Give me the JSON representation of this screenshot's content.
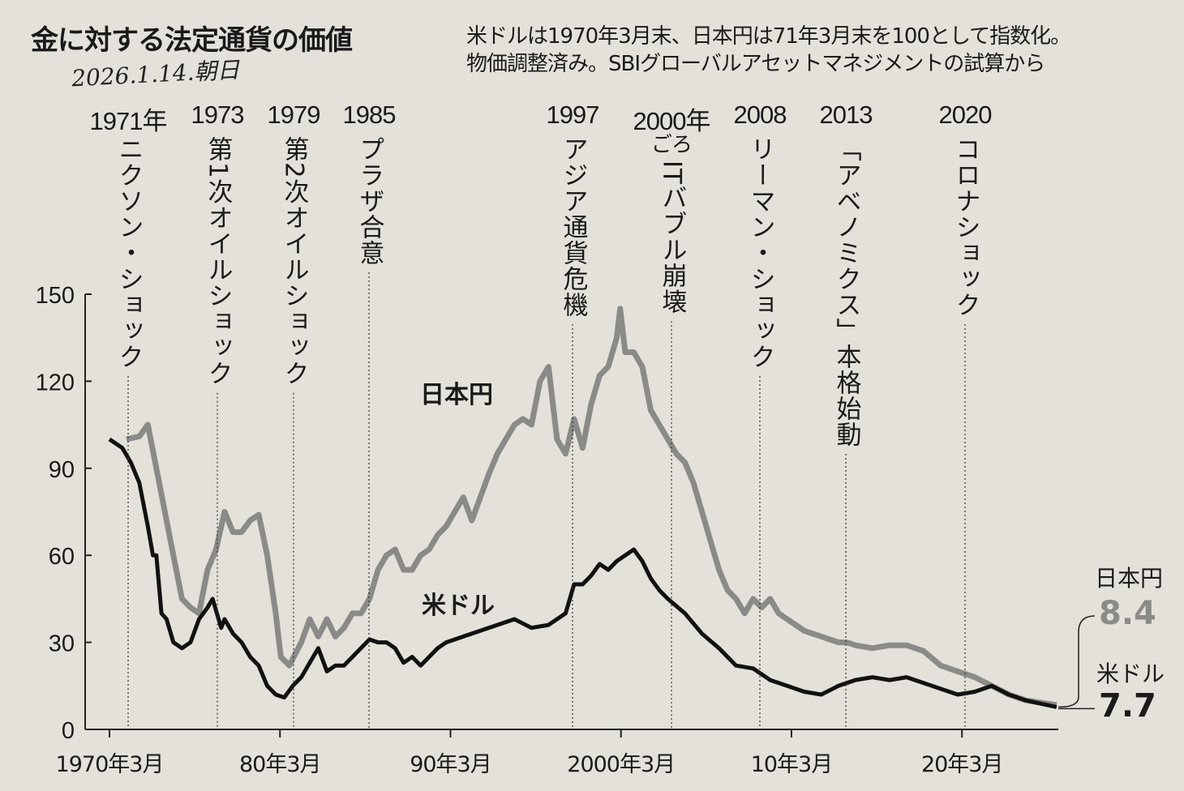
{
  "header": {
    "title": "金に対する法定通貨の価値",
    "handwritten_note": "2026.1.14.朝日",
    "subtitle_line1": "米ドルは1970年3月末、日本円は71年3月末を100として指数化。",
    "subtitle_line2": "物価調整済み。SBIグローバルアセットマネジメントの試算から"
  },
  "events": [
    {
      "year_label": "1971年",
      "text": "ニクソン・ショック",
      "year": 1971.6
    },
    {
      "year_label": "1973",
      "text": "第1次オイルショック",
      "year": 1976.2
    },
    {
      "year_label": "1979",
      "text": "第2次オイルショック",
      "year": 1979.0
    },
    {
      "year_label": "1985",
      "text": "プラザ合意",
      "year": 1985.2
    },
    {
      "year_label": "1997",
      "text": "アジア通貨危機",
      "year": 1997.5
    },
    {
      "year_label": "2000年",
      "sub_label": "ごろ",
      "text": "ITバブル崩壊",
      "year": 2000.2
    },
    {
      "year_label": "2008",
      "text": "リーマン・ショック",
      "year": 2008.3
    },
    {
      "year_label": "2013",
      "text": "「アベノミクス」本格始動",
      "year": 2013.2
    },
    {
      "year_label": "2020",
      "text": "コロナショック",
      "year": 2020.2
    }
  ],
  "chart_data": {
    "type": "line",
    "title": "金に対する法定通貨の価値",
    "xlabel": "",
    "ylabel": "",
    "ylim": [
      0,
      150
    ],
    "xlim": [
      1970.25,
      2025.9
    ],
    "yticks": [
      0,
      30,
      60,
      90,
      120,
      150
    ],
    "xticks": [
      {
        "label": "1970年3月",
        "value": 1970.25
      },
      {
        "label": "80年3月",
        "value": 1980.25
      },
      {
        "label": "90年3月",
        "value": 1990.25
      },
      {
        "label": "2000年3月",
        "value": 2000.25
      },
      {
        "label": "10年3月",
        "value": 2010.25
      },
      {
        "label": "20年3月",
        "value": 2020.25
      }
    ],
    "grid": false,
    "series": [
      {
        "name": "日本円",
        "color": "#8a8a88",
        "end_value": "8.4",
        "x": [
          1971.25,
          1972,
          1972.5,
          1973,
          1973.5,
          1974,
          1974.5,
          1975,
          1975.5,
          1976,
          1976.5,
          1977,
          1977.5,
          1978,
          1978.5,
          1979,
          1979.5,
          1980,
          1980.3,
          1980.8,
          1981.5,
          1982,
          1982.5,
          1983,
          1983.5,
          1984,
          1984.5,
          1985,
          1985.5,
          1986,
          1986.5,
          1987,
          1987.5,
          1988,
          1988.5,
          1989,
          1989.5,
          1990,
          1990.5,
          1991,
          1991.5,
          1992,
          1992.5,
          1993,
          1993.5,
          1994,
          1994.5,
          1995,
          1995.5,
          1996,
          1996.5,
          1997,
          1997.5,
          1998,
          1998.5,
          1999,
          1999.5,
          2000,
          2000.2,
          2000.5,
          2001,
          2001.5,
          2002,
          2002.5,
          2003,
          2003.5,
          2004,
          2004.5,
          2005,
          2005.5,
          2006,
          2006.5,
          2007,
          2007.5,
          2008,
          2008.5,
          2009,
          2009.5,
          2010,
          2011,
          2012,
          2013,
          2013.5,
          2014,
          2015,
          2016,
          2017,
          2018,
          2019,
          2020,
          2021,
          2022,
          2023,
          2024,
          2025.8
        ],
        "y": [
          100,
          101,
          105,
          90,
          75,
          60,
          45,
          42,
          40,
          55,
          62,
          75,
          68,
          68,
          72,
          74,
          60,
          40,
          25,
          22,
          30,
          38,
          32,
          38,
          32,
          35,
          40,
          40,
          45,
          55,
          60,
          62,
          55,
          55,
          60,
          62,
          67,
          70,
          75,
          80,
          72,
          80,
          88,
          95,
          100,
          105,
          107,
          105,
          120,
          125,
          100,
          95,
          107,
          97,
          112,
          122,
          125,
          135,
          145,
          130,
          130,
          125,
          110,
          105,
          100,
          95,
          92,
          85,
          75,
          65,
          55,
          48,
          45,
          40,
          45,
          42,
          45,
          40,
          38,
          34,
          32,
          30,
          30,
          29,
          28,
          29,
          29,
          27,
          22,
          20,
          18,
          15,
          12,
          10,
          8.4
        ]
      },
      {
        "name": "米ドル",
        "color": "#111111",
        "end_value": "7.7",
        "x": [
          1970.25,
          1971,
          1971.5,
          1972,
          1972.5,
          1972.8,
          1973,
          1973.3,
          1973.6,
          1974,
          1974.5,
          1975,
          1975.5,
          1976,
          1976.3,
          1976.8,
          1977,
          1977.5,
          1978,
          1978.5,
          1979,
          1979.5,
          1980,
          1980.5,
          1981,
          1981.5,
          1982,
          1982.5,
          1983,
          1983.5,
          1984,
          1985,
          1985.5,
          1986,
          1986.5,
          1987,
          1987.5,
          1988,
          1988.5,
          1989,
          1989.5,
          1990,
          1991,
          1992,
          1993,
          1994,
          1995,
          1996,
          1997,
          1997.5,
          1998,
          1998.5,
          1999,
          1999.5,
          2000,
          2000.5,
          2001,
          2001.5,
          2002,
          2002.5,
          2003,
          2004,
          2005,
          2006,
          2007,
          2008,
          2009,
          2010,
          2011,
          2012,
          2013,
          2014,
          2015,
          2016,
          2017,
          2018,
          2019,
          2020,
          2021,
          2022,
          2023,
          2024,
          2025.8
        ],
        "y": [
          100,
          97,
          92,
          85,
          70,
          60,
          60,
          40,
          38,
          30,
          28,
          30,
          38,
          42,
          45,
          35,
          38,
          33,
          30,
          25,
          22,
          15,
          12,
          11,
          15,
          18,
          23,
          28,
          20,
          22,
          22,
          28,
          31,
          30,
          30,
          28,
          23,
          25,
          22,
          25,
          28,
          30,
          32,
          34,
          36,
          38,
          35,
          36,
          40,
          50,
          50,
          53,
          57,
          55,
          58,
          60,
          62,
          58,
          52,
          48,
          45,
          40,
          33,
          28,
          22,
          21,
          17,
          15,
          13,
          12,
          15,
          17,
          18,
          17,
          18,
          16,
          14,
          12,
          13,
          15,
          12,
          10,
          7.7
        ]
      }
    ]
  }
}
